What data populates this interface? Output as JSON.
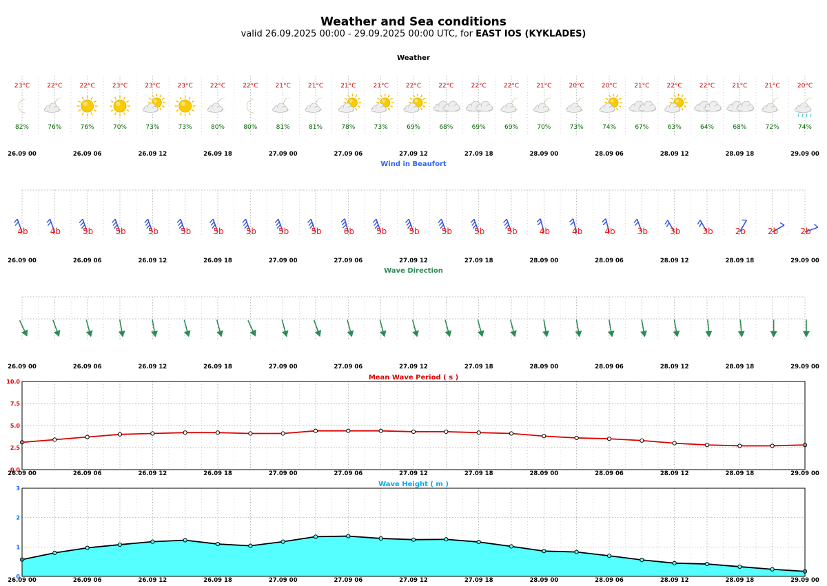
{
  "header": {
    "title": "Weather and Sea conditions",
    "subtitle_prefix": "valid 26.09.2025 00:00 - 29.09.2025 00:00 UTC, for",
    "location": "EAST IOS (KYKLADES)"
  },
  "time_labels": [
    "26.09 00",
    "26.09 06",
    "26.09 12",
    "26.09 18",
    "27.09 00",
    "27.09 06",
    "27.09 12",
    "27.09 18",
    "28.09 00",
    "28.09 06",
    "28.09 12",
    "28.09 18",
    "29.09 00"
  ],
  "colors": {
    "temp": "#cc0000",
    "humidity": "#006600",
    "wind_title": "#3366ee",
    "wind_barb": "#3355dd",
    "beaufort_label": "#ee1111",
    "wave_dir_title": "#2e8b57",
    "wave_arrow": "#2e8b57",
    "period_title": "#dd0000",
    "period_line": "#dd0000",
    "height_title": "#00aaee",
    "height_fill": "#55ffff",
    "height_line": "#000000",
    "grid": "#999999"
  },
  "chart_data": [
    {
      "type": "table",
      "title": "Weather",
      "x": [
        "26.09 00",
        "26.09 03",
        "26.09 06",
        "26.09 09",
        "26.09 12",
        "26.09 15",
        "26.09 18",
        "26.09 21",
        "27.09 00",
        "27.09 03",
        "27.09 06",
        "27.09 09",
        "27.09 12",
        "27.09 15",
        "27.09 18",
        "27.09 21",
        "28.09 00",
        "28.09 03",
        "28.09 06",
        "28.09 09",
        "28.09 12",
        "28.09 15",
        "28.09 18",
        "28.09 21",
        "29.09 00"
      ],
      "temperature": [
        "23°C",
        "22°C",
        "22°C",
        "23°C",
        "23°C",
        "23°C",
        "22°C",
        "22°C",
        "21°C",
        "21°C",
        "21°C",
        "21°C",
        "22°C",
        "22°C",
        "22°C",
        "22°C",
        "21°C",
        "20°C",
        "20°C",
        "21°C",
        "22°C",
        "22°C",
        "21°C",
        "21°C",
        "20°C"
      ],
      "humidity": [
        "82%",
        "76%",
        "76%",
        "70%",
        "73%",
        "73%",
        "80%",
        "80%",
        "81%",
        "81%",
        "78%",
        "73%",
        "69%",
        "68%",
        "69%",
        "69%",
        "70%",
        "73%",
        "74%",
        "67%",
        "63%",
        "64%",
        "68%",
        "72%",
        "74%"
      ],
      "weather_icons": [
        "moon-icon",
        "moon-cloud-icon",
        "sun-icon",
        "sun-icon",
        "sun-cloud-icon",
        "sun-icon",
        "moon-cloud-icon",
        "moon-icon",
        "moon-cloud-icon",
        "moon-cloud-icon",
        "sun-cloud-icon",
        "sun-cloud-icon",
        "sun-cloud-icon",
        "cloud-icon",
        "cloud-icon",
        "moon-cloud-icon",
        "moon-cloud-icon",
        "moon-cloud-icon",
        "sun-cloud-icon",
        "cloud-icon",
        "sun-cloud-icon",
        "cloud-icon",
        "cloud-icon",
        "moon-cloud-icon",
        "moon-cloud-rain-icon"
      ]
    },
    {
      "type": "table",
      "title": "Wind in Beaufort",
      "beaufort": [
        "4b",
        "4b",
        "5b",
        "5b",
        "5b",
        "5b",
        "5b",
        "5b",
        "5b",
        "5b",
        "6b",
        "5b",
        "5b",
        "5b",
        "5b",
        "5b",
        "4b",
        "4b",
        "4b",
        "3b",
        "3b",
        "3b",
        "2b",
        "2b",
        "2b"
      ],
      "wind_from_deg": [
        340,
        340,
        340,
        340,
        340,
        340,
        340,
        340,
        340,
        340,
        345,
        340,
        340,
        340,
        340,
        340,
        345,
        345,
        345,
        340,
        330,
        330,
        30,
        60,
        70
      ]
    },
    {
      "type": "table",
      "title": "Wave Direction",
      "wave_from_deg": [
        335,
        340,
        345,
        350,
        350,
        345,
        345,
        335,
        345,
        340,
        345,
        345,
        345,
        345,
        345,
        345,
        350,
        350,
        350,
        350,
        350,
        355,
        355,
        0,
        0
      ]
    },
    {
      "type": "line",
      "title": "Mean Wave Period ( s )",
      "ylim": [
        0,
        10
      ],
      "yticks": [
        "0.0",
        "2.5",
        "5.0",
        "7.5",
        "10.0"
      ],
      "x": [
        "26.09 00",
        "26.09 03",
        "26.09 06",
        "26.09 09",
        "26.09 12",
        "26.09 15",
        "26.09 18",
        "26.09 21",
        "27.09 00",
        "27.09 03",
        "27.09 06",
        "27.09 09",
        "27.09 12",
        "27.09 15",
        "27.09 18",
        "27.09 21",
        "28.09 00",
        "28.09 03",
        "28.09 06",
        "28.09 09",
        "28.09 12",
        "28.09 15",
        "28.09 18",
        "28.09 21",
        "29.09 00"
      ],
      "values": [
        3.1,
        3.4,
        3.7,
        4.0,
        4.1,
        4.2,
        4.2,
        4.1,
        4.1,
        4.4,
        4.4,
        4.4,
        4.3,
        4.3,
        4.2,
        4.1,
        3.8,
        3.6,
        3.5,
        3.3,
        3.0,
        2.8,
        2.7,
        2.7,
        2.8
      ]
    },
    {
      "type": "area",
      "title": "Wave Height ( m )",
      "ylim": [
        0,
        3
      ],
      "yticks": [
        "0",
        "1",
        "2",
        "3"
      ],
      "x": [
        "26.09 00",
        "26.09 03",
        "26.09 06",
        "26.09 09",
        "26.09 12",
        "26.09 15",
        "26.09 18",
        "26.09 21",
        "27.09 00",
        "27.09 03",
        "27.09 06",
        "27.09 09",
        "27.09 12",
        "27.09 15",
        "27.09 18",
        "27.09 21",
        "28.09 00",
        "28.09 03",
        "28.09 06",
        "28.09 09",
        "28.09 12",
        "28.09 15",
        "28.09 18",
        "28.09 21",
        "29.09 00"
      ],
      "values": [
        0.57,
        0.8,
        0.97,
        1.08,
        1.18,
        1.23,
        1.1,
        1.04,
        1.18,
        1.35,
        1.37,
        1.29,
        1.25,
        1.26,
        1.17,
        1.02,
        0.86,
        0.83,
        0.7,
        0.56,
        0.45,
        0.42,
        0.33,
        0.24,
        0.17
      ]
    }
  ]
}
